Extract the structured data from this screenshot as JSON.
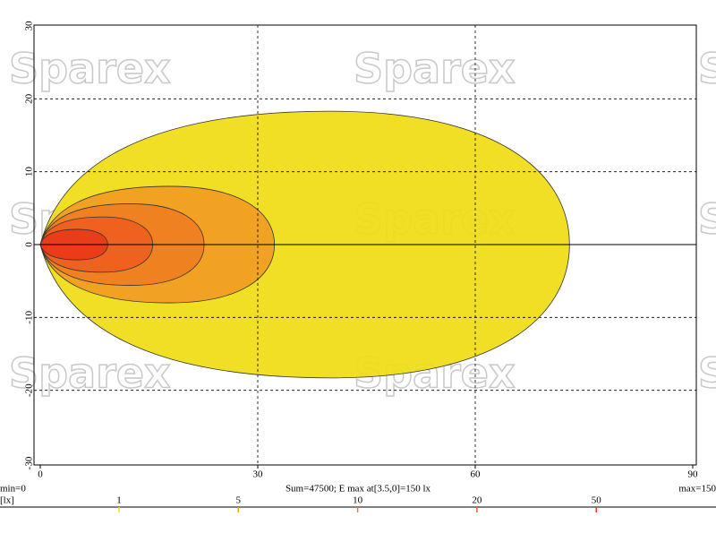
{
  "chart_data": {
    "type": "isolux",
    "watermark": "Sparex",
    "xlim": [
      0,
      90
    ],
    "xticks": [
      0,
      30,
      60,
      90
    ],
    "ylim": [
      -30,
      30
    ],
    "yticks": [
      -30,
      -20,
      -10,
      0,
      10,
      20,
      30
    ],
    "grid": true,
    "contours": [
      {
        "level": 1,
        "x_max": 73,
        "half_width": 18.3,
        "color": "#f0dc12"
      },
      {
        "level": 5,
        "x_max": 32.3,
        "half_width": 8,
        "color": "#f29c22"
      },
      {
        "level": 10,
        "x_max": 22.6,
        "half_width": 5.6,
        "color": "#f07e22"
      },
      {
        "level": 20,
        "x_max": 15.5,
        "half_width": 3.8,
        "color": "#ee5e20"
      },
      {
        "level": 50,
        "x_max": 9.3,
        "half_width": 2.1,
        "color": "#ea3a1a"
      }
    ],
    "min_label": "min=0",
    "summary": "Sum=47500; E max at[3.5,0]=150 lx",
    "max_label": "max=150",
    "unit": "[lx]",
    "scale_ticks": [
      1,
      5,
      10,
      20,
      50
    ]
  }
}
